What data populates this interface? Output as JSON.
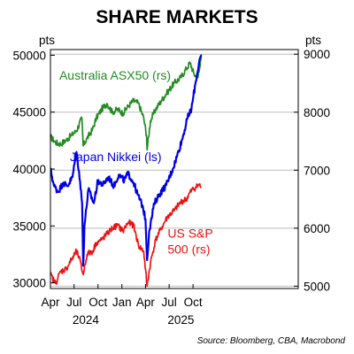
{
  "colors": {
    "australia": "#228b22",
    "japan": "#0000e6",
    "us": "#ee1111",
    "gridline": "#bdbdbd",
    "axis": "#000000"
  },
  "chart_data": {
    "type": "line",
    "title": "SHARE MARKETS",
    "left_unit": "pts",
    "right_unit": "pts",
    "source": "Source: Bloomberg, CBA, Macrobond",
    "x_range": [
      "2023-04-01",
      "2025-11-10"
    ],
    "x_ticks": [
      {
        "date": "2023-04-01",
        "label": "Apr"
      },
      {
        "date": "2023-07-01",
        "label": "Jul"
      },
      {
        "date": "2023-10-01",
        "label": "Oct"
      },
      {
        "date": "2024-01-01",
        "label": "Jan"
      },
      {
        "date": "2024-04-01",
        "label": "Apr"
      },
      {
        "date": "2024-07-01",
        "label": "Jul"
      },
      {
        "date": "2024-10-01",
        "label": "Oct"
      }
    ],
    "x_year_labels": [
      {
        "date": "2023-08-15",
        "label": "2024"
      },
      {
        "date": "2024-08-15",
        "label": "2025"
      }
    ],
    "left_axis": {
      "ylim": [
        29500,
        50500
      ],
      "ticks": [
        30000,
        35000,
        40000,
        45000,
        50000
      ],
      "tick_labels": [
        "30000",
        "35000",
        "40000",
        "45000",
        "50000"
      ]
    },
    "right_axis": {
      "ylim": [
        4960,
        9080
      ],
      "ticks": [
        5000,
        6000,
        7000,
        8000,
        9000
      ],
      "tick_labels": [
        "5000",
        "6000",
        "7000",
        "8000",
        "9000"
      ]
    },
    "grid": true,
    "series": [
      {
        "name": "Australia ASX50 (rs)",
        "axis": "right",
        "color_key": "australia",
        "label_lines": [
          "Australia ASX50 (rs)"
        ],
        "label_anchor_date": "2023-05-05",
        "label_anchor_value": 8560,
        "points": [
          [
            "2023-04-01",
            7580
          ],
          [
            "2023-04-20",
            7480
          ],
          [
            "2023-05-10",
            7450
          ],
          [
            "2023-06-01",
            7520
          ],
          [
            "2023-06-20",
            7600
          ],
          [
            "2023-07-10",
            7680
          ],
          [
            "2023-07-31",
            7900
          ],
          [
            "2023-08-05",
            7420
          ],
          [
            "2023-08-20",
            7550
          ],
          [
            "2023-09-10",
            7700
          ],
          [
            "2023-09-25",
            7900
          ],
          [
            "2023-10-15",
            8050
          ],
          [
            "2023-11-05",
            8150
          ],
          [
            "2023-11-25",
            8000
          ],
          [
            "2023-12-15",
            8050
          ],
          [
            "2024-01-05",
            7980
          ],
          [
            "2024-01-25",
            8100
          ],
          [
            "2024-02-15",
            8200
          ],
          [
            "2024-03-05",
            8150
          ],
          [
            "2024-03-25",
            7900
          ],
          [
            "2024-04-05",
            7600
          ],
          [
            "2024-04-07",
            7350
          ],
          [
            "2024-04-20",
            7850
          ],
          [
            "2024-05-10",
            8050
          ],
          [
            "2024-06-01",
            8200
          ],
          [
            "2024-06-25",
            8350
          ],
          [
            "2024-07-20",
            8500
          ],
          [
            "2024-08-15",
            8600
          ],
          [
            "2024-09-05",
            8750
          ],
          [
            "2024-09-20",
            8850
          ],
          [
            "2024-10-05",
            8650
          ],
          [
            "2024-10-20",
            8600
          ],
          [
            "2024-10-28",
            8800
          ],
          [
            "2024-11-02",
            9000
          ]
        ]
      },
      {
        "name": "Japan Nikkei (ls)",
        "axis": "left",
        "color_key": "japan",
        "label_lines": [
          "Japan Nikkei (ls)"
        ],
        "label_anchor_date": "2023-06-15",
        "label_anchor_value": 40700,
        "points": [
          [
            "2023-04-01",
            40000
          ],
          [
            "2023-04-15",
            38500
          ],
          [
            "2023-05-01",
            38000
          ],
          [
            "2023-05-20",
            38800
          ],
          [
            "2023-06-05",
            38500
          ],
          [
            "2023-06-25",
            39300
          ],
          [
            "2023-07-10",
            41500
          ],
          [
            "2023-07-20",
            39800
          ],
          [
            "2023-08-01",
            37000
          ],
          [
            "2023-08-05",
            31500
          ],
          [
            "2023-08-10",
            35000
          ],
          [
            "2023-08-25",
            38200
          ],
          [
            "2023-09-15",
            37000
          ],
          [
            "2023-10-01",
            39000
          ],
          [
            "2023-10-20",
            38600
          ],
          [
            "2023-11-10",
            39300
          ],
          [
            "2023-12-01",
            38500
          ],
          [
            "2023-12-20",
            39500
          ],
          [
            "2024-01-10",
            39000
          ],
          [
            "2024-01-25",
            39600
          ],
          [
            "2024-02-15",
            38800
          ],
          [
            "2024-03-01",
            37800
          ],
          [
            "2024-03-20",
            36800
          ],
          [
            "2024-04-01",
            35600
          ],
          [
            "2024-04-07",
            32000
          ],
          [
            "2024-04-15",
            34500
          ],
          [
            "2024-05-05",
            37000
          ],
          [
            "2024-05-25",
            37800
          ],
          [
            "2024-06-20",
            38600
          ],
          [
            "2024-07-15",
            40000
          ],
          [
            "2024-08-01",
            41200
          ],
          [
            "2024-08-20",
            42600
          ],
          [
            "2024-09-10",
            44500
          ],
          [
            "2024-09-25",
            45300
          ],
          [
            "2024-10-10",
            47500
          ],
          [
            "2024-10-25",
            49500
          ],
          [
            "2024-11-02",
            50000
          ]
        ]
      },
      {
        "name": "US S&P 500 (rs)",
        "axis": "right",
        "color_key": "us",
        "label_lines": [
          "US S&P",
          "500 (rs)"
        ],
        "label_anchor_date": "2024-06-25",
        "label_anchor_value": 5840,
        "points": [
          [
            "2023-04-01",
            5200
          ],
          [
            "2023-04-20",
            5050
          ],
          [
            "2023-05-10",
            5250
          ],
          [
            "2023-06-01",
            5300
          ],
          [
            "2023-06-20",
            5450
          ],
          [
            "2023-07-10",
            5600
          ],
          [
            "2023-07-20",
            5500
          ],
          [
            "2023-08-05",
            5200
          ],
          [
            "2023-08-20",
            5550
          ],
          [
            "2023-09-10",
            5600
          ],
          [
            "2023-09-25",
            5750
          ],
          [
            "2023-10-15",
            5800
          ],
          [
            "2023-11-05",
            5900
          ],
          [
            "2023-11-25",
            6000
          ],
          [
            "2023-12-15",
            6050
          ],
          [
            "2024-01-05",
            5950
          ],
          [
            "2024-01-25",
            6100
          ],
          [
            "2024-02-15",
            6050
          ],
          [
            "2024-03-05",
            5700
          ],
          [
            "2024-03-25",
            5600
          ],
          [
            "2024-04-07",
            5000
          ],
          [
            "2024-04-20",
            5400
          ],
          [
            "2024-05-10",
            5800
          ],
          [
            "2024-06-01",
            6000
          ],
          [
            "2024-06-25",
            6200
          ],
          [
            "2024-07-20",
            6300
          ],
          [
            "2024-08-15",
            6450
          ],
          [
            "2024-09-05",
            6500
          ],
          [
            "2024-09-25",
            6650
          ],
          [
            "2024-10-10",
            6700
          ],
          [
            "2024-10-25",
            6750
          ],
          [
            "2024-11-02",
            6700
          ]
        ]
      }
    ]
  }
}
